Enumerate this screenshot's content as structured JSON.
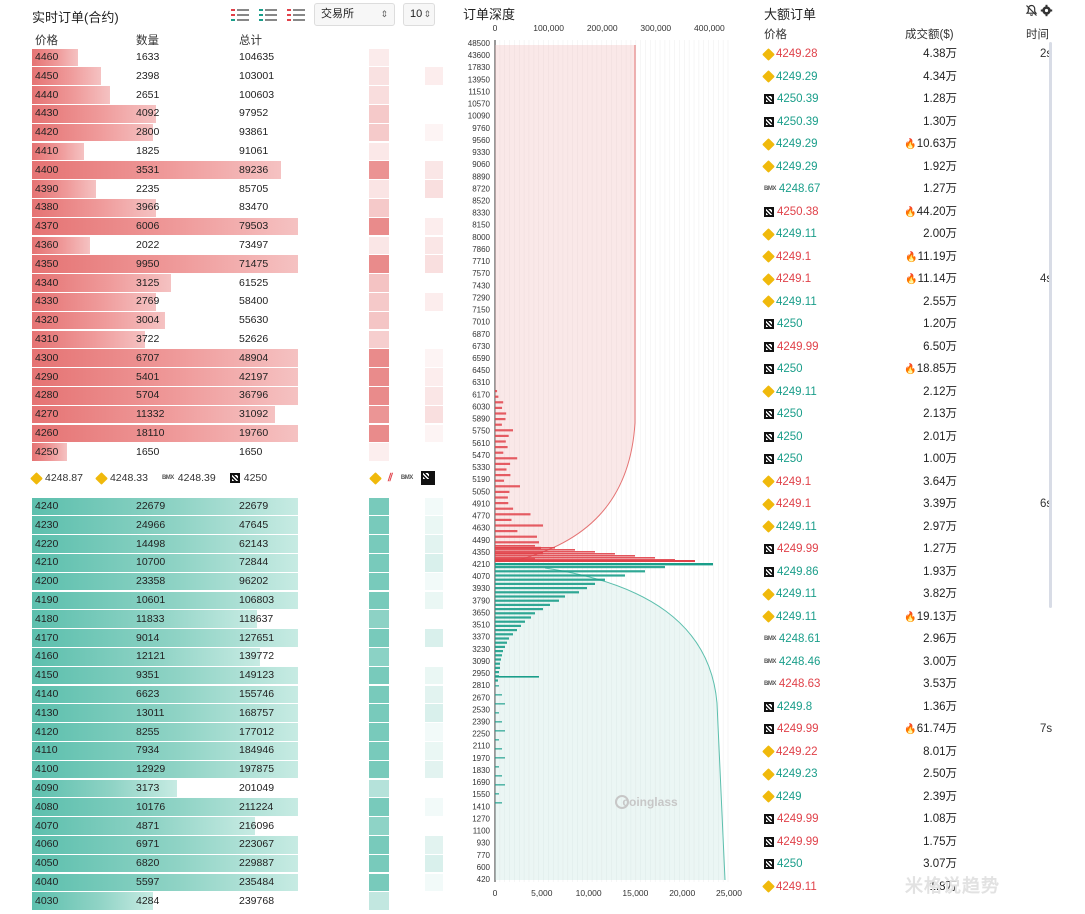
{
  "orderbook": {
    "title": "实时订单(合约)",
    "exchange_select": "交易所",
    "depth_select": "10",
    "headers": {
      "price": "价格",
      "qty": "数量",
      "total": "总计"
    },
    "asks": [
      {
        "price": "4460",
        "qty": "1633",
        "total": "104635",
        "fill": 0.16
      },
      {
        "price": "4450",
        "qty": "2398",
        "total": "103001",
        "fill": 0.24
      },
      {
        "price": "4440",
        "qty": "2651",
        "total": "100603",
        "fill": 0.27
      },
      {
        "price": "4430",
        "qty": "4092",
        "total": "97952",
        "fill": 0.43
      },
      {
        "price": "4420",
        "qty": "2800",
        "total": "93861",
        "fill": 0.42
      },
      {
        "price": "4410",
        "qty": "1825",
        "total": "91061",
        "fill": 0.18
      },
      {
        "price": "4400",
        "qty": "3531",
        "total": "89236",
        "fill": 0.86
      },
      {
        "price": "4390",
        "qty": "2235",
        "total": "85705",
        "fill": 0.22
      },
      {
        "price": "4380",
        "qty": "3966",
        "total": "83470",
        "fill": 0.43
      },
      {
        "price": "4370",
        "qty": "6006",
        "total": "79503",
        "fill": 0.92
      },
      {
        "price": "4360",
        "qty": "2022",
        "total": "73497",
        "fill": 0.2
      },
      {
        "price": "4350",
        "qty": "9950",
        "total": "71475",
        "fill": 0.92
      },
      {
        "price": "4340",
        "qty": "3125",
        "total": "61525",
        "fill": 0.48
      },
      {
        "price": "4330",
        "qty": "2769",
        "total": "58400",
        "fill": 0.43
      },
      {
        "price": "4320",
        "qty": "3004",
        "total": "55630",
        "fill": 0.46
      },
      {
        "price": "4310",
        "qty": "3722",
        "total": "52626",
        "fill": 0.39
      },
      {
        "price": "4300",
        "qty": "6707",
        "total": "48904",
        "fill": 0.92
      },
      {
        "price": "4290",
        "qty": "5401",
        "total": "42197",
        "fill": 0.92
      },
      {
        "price": "4280",
        "qty": "5704",
        "total": "36796",
        "fill": 0.92
      },
      {
        "price": "4270",
        "qty": "11332",
        "total": "31092",
        "fill": 0.84
      },
      {
        "price": "4260",
        "qty": "18110",
        "total": "19760",
        "fill": 0.92
      },
      {
        "price": "4250",
        "qty": "1650",
        "total": "1650",
        "fill": 0.12
      }
    ],
    "exchange_prices": [
      {
        "icon": "binance-icon",
        "price": "4248.87"
      },
      {
        "icon": "binance-icon",
        "price": "4248.33"
      },
      {
        "icon": "bitmex-icon",
        "price": "4248.39"
      },
      {
        "icon": "okx-icon",
        "price": "4250"
      }
    ],
    "bids": [
      {
        "price": "4240",
        "qty": "22679",
        "total": "22679",
        "fill": 0.92
      },
      {
        "price": "4230",
        "qty": "24966",
        "total": "47645",
        "fill": 0.92
      },
      {
        "price": "4220",
        "qty": "14498",
        "total": "62143",
        "fill": 0.92
      },
      {
        "price": "4210",
        "qty": "10700",
        "total": "72844",
        "fill": 0.92
      },
      {
        "price": "4200",
        "qty": "23358",
        "total": "96202",
        "fill": 0.92
      },
      {
        "price": "4190",
        "qty": "10601",
        "total": "106803",
        "fill": 0.92
      },
      {
        "price": "4180",
        "qty": "11833",
        "total": "118637",
        "fill": 0.78
      },
      {
        "price": "4170",
        "qty": "9014",
        "total": "127651",
        "fill": 0.92
      },
      {
        "price": "4160",
        "qty": "12121",
        "total": "139772",
        "fill": 0.79
      },
      {
        "price": "4150",
        "qty": "9351",
        "total": "149123",
        "fill": 0.92
      },
      {
        "price": "4140",
        "qty": "6623",
        "total": "155746",
        "fill": 0.92
      },
      {
        "price": "4130",
        "qty": "13011",
        "total": "168757",
        "fill": 0.92
      },
      {
        "price": "4120",
        "qty": "8255",
        "total": "177012",
        "fill": 0.92
      },
      {
        "price": "4110",
        "qty": "7934",
        "total": "184946",
        "fill": 0.92
      },
      {
        "price": "4100",
        "qty": "12929",
        "total": "197875",
        "fill": 0.92
      },
      {
        "price": "4090",
        "qty": "3173",
        "total": "201049",
        "fill": 0.5
      },
      {
        "price": "4080",
        "qty": "10176",
        "total": "211224",
        "fill": 0.92
      },
      {
        "price": "4070",
        "qty": "4871",
        "total": "216096",
        "fill": 0.77
      },
      {
        "price": "4060",
        "qty": "6971",
        "total": "223067",
        "fill": 0.92
      },
      {
        "price": "4050",
        "qty": "6820",
        "total": "229887",
        "fill": 0.92
      },
      {
        "price": "4040",
        "qty": "5597",
        "total": "235484",
        "fill": 0.92
      },
      {
        "price": "4030",
        "qty": "4284",
        "total": "239768",
        "fill": 0.42
      }
    ],
    "colors": {
      "ask": "#e57373",
      "bid": "#5cbfad"
    }
  },
  "depth": {
    "title": "订单深度",
    "watermark": "coinglass",
    "top_ticks": [
      "0",
      "100,000",
      "200,000",
      "300,000",
      "400,000"
    ],
    "bottom_ticks": [
      "0",
      "5,000",
      "10,000",
      "15,000",
      "20,000",
      "25,000"
    ],
    "price_labels": [
      "48500",
      "43600",
      "17830",
      "13950",
      "11510",
      "10570",
      "10090",
      "9760",
      "9560",
      "9330",
      "9060",
      "8890",
      "8720",
      "8520",
      "8330",
      "8150",
      "8000",
      "7860",
      "7710",
      "7570",
      "7430",
      "7290",
      "7150",
      "7010",
      "6870",
      "6730",
      "6590",
      "6450",
      "6310",
      "6170",
      "6030",
      "5890",
      "5750",
      "5610",
      "5470",
      "5330",
      "5190",
      "5050",
      "4910",
      "4770",
      "4630",
      "4490",
      "4350",
      "4210",
      "4070",
      "3930",
      "3790",
      "3650",
      "3510",
      "3370",
      "3230",
      "3090",
      "2950",
      "2810",
      "2670",
      "2530",
      "2390",
      "2250",
      "2110",
      "1970",
      "1830",
      "1690",
      "1550",
      "1410",
      "1270",
      "1100",
      "930",
      "770",
      "600",
      "420"
    ]
  },
  "large_orders": {
    "title": "大额订单",
    "headers": {
      "price": "价格",
      "amount": "成交额($)",
      "time": "时间"
    },
    "rows": [
      {
        "ex": "binance-icon",
        "price": "4249.28",
        "dir": "down",
        "amount": "4.38万",
        "fire": false,
        "time": "2s"
      },
      {
        "ex": "binance-icon",
        "price": "4249.29",
        "dir": "up",
        "amount": "4.34万",
        "fire": false,
        "time": ""
      },
      {
        "ex": "okx-icon",
        "price": "4250.39",
        "dir": "up",
        "amount": "1.28万",
        "fire": false,
        "time": ""
      },
      {
        "ex": "okx-icon",
        "price": "4250.39",
        "dir": "up",
        "amount": "1.30万",
        "fire": false,
        "time": ""
      },
      {
        "ex": "binance-icon",
        "price": "4249.29",
        "dir": "up",
        "amount": "10.63万",
        "fire": true,
        "time": ""
      },
      {
        "ex": "binance-icon",
        "price": "4249.29",
        "dir": "up",
        "amount": "1.92万",
        "fire": false,
        "time": ""
      },
      {
        "ex": "bitmex-icon",
        "price": "4248.67",
        "dir": "up",
        "amount": "1.27万",
        "fire": false,
        "time": ""
      },
      {
        "ex": "okx-icon",
        "price": "4250.38",
        "dir": "down",
        "amount": "44.20万",
        "fire": true,
        "time": ""
      },
      {
        "ex": "binance-icon",
        "price": "4249.11",
        "dir": "up",
        "amount": "2.00万",
        "fire": false,
        "time": ""
      },
      {
        "ex": "binance-icon",
        "price": "4249.1",
        "dir": "down",
        "amount": "11.19万",
        "fire": true,
        "time": ""
      },
      {
        "ex": "binance-icon",
        "price": "4249.1",
        "dir": "down",
        "amount": "11.14万",
        "fire": true,
        "time": "4s"
      },
      {
        "ex": "binance-icon",
        "price": "4249.11",
        "dir": "up",
        "amount": "2.55万",
        "fire": false,
        "time": ""
      },
      {
        "ex": "okx-icon",
        "price": "4250",
        "dir": "up",
        "amount": "1.20万",
        "fire": false,
        "time": ""
      },
      {
        "ex": "okx-icon",
        "price": "4249.99",
        "dir": "down",
        "amount": "6.50万",
        "fire": false,
        "time": ""
      },
      {
        "ex": "okx-icon",
        "price": "4250",
        "dir": "up",
        "amount": "18.85万",
        "fire": true,
        "time": ""
      },
      {
        "ex": "binance-icon",
        "price": "4249.11",
        "dir": "up",
        "amount": "2.12万",
        "fire": false,
        "time": ""
      },
      {
        "ex": "okx-icon",
        "price": "4250",
        "dir": "up",
        "amount": "2.13万",
        "fire": false,
        "time": ""
      },
      {
        "ex": "okx-icon",
        "price": "4250",
        "dir": "up",
        "amount": "2.01万",
        "fire": false,
        "time": ""
      },
      {
        "ex": "okx-icon",
        "price": "4250",
        "dir": "up",
        "amount": "1.00万",
        "fire": false,
        "time": ""
      },
      {
        "ex": "binance-icon",
        "price": "4249.1",
        "dir": "down",
        "amount": "3.64万",
        "fire": false,
        "time": ""
      },
      {
        "ex": "binance-icon",
        "price": "4249.1",
        "dir": "down",
        "amount": "3.39万",
        "fire": false,
        "time": "6s"
      },
      {
        "ex": "binance-icon",
        "price": "4249.11",
        "dir": "up",
        "amount": "2.97万",
        "fire": false,
        "time": ""
      },
      {
        "ex": "okx-icon",
        "price": "4249.99",
        "dir": "down",
        "amount": "1.27万",
        "fire": false,
        "time": ""
      },
      {
        "ex": "okx-icon",
        "price": "4249.86",
        "dir": "up",
        "amount": "1.93万",
        "fire": false,
        "time": ""
      },
      {
        "ex": "binance-icon",
        "price": "4249.11",
        "dir": "up",
        "amount": "3.82万",
        "fire": false,
        "time": ""
      },
      {
        "ex": "binance-icon",
        "price": "4249.11",
        "dir": "up",
        "amount": "19.13万",
        "fire": true,
        "time": ""
      },
      {
        "ex": "bitmex-icon",
        "price": "4248.61",
        "dir": "up",
        "amount": "2.96万",
        "fire": false,
        "time": ""
      },
      {
        "ex": "bitmex-icon",
        "price": "4248.46",
        "dir": "up",
        "amount": "3.00万",
        "fire": false,
        "time": ""
      },
      {
        "ex": "bitmex-icon",
        "price": "4248.63",
        "dir": "down",
        "amount": "3.53万",
        "fire": false,
        "time": ""
      },
      {
        "ex": "okx-icon",
        "price": "4249.8",
        "dir": "up",
        "amount": "1.36万",
        "fire": false,
        "time": ""
      },
      {
        "ex": "okx-icon",
        "price": "4249.99",
        "dir": "down",
        "amount": "61.74万",
        "fire": true,
        "time": "7s"
      },
      {
        "ex": "binance-icon",
        "price": "4249.22",
        "dir": "down",
        "amount": "8.01万",
        "fire": false,
        "time": ""
      },
      {
        "ex": "binance-icon",
        "price": "4249.23",
        "dir": "up",
        "amount": "2.50万",
        "fire": false,
        "time": ""
      },
      {
        "ex": "binance-icon",
        "price": "4249",
        "dir": "up",
        "amount": "2.39万",
        "fire": false,
        "time": ""
      },
      {
        "ex": "okx-icon",
        "price": "4249.99",
        "dir": "down",
        "amount": "1.08万",
        "fire": false,
        "time": ""
      },
      {
        "ex": "okx-icon",
        "price": "4249.99",
        "dir": "down",
        "amount": "1.75万",
        "fire": false,
        "time": ""
      },
      {
        "ex": "okx-icon",
        "price": "4250",
        "dir": "up",
        "amount": "3.07万",
        "fire": false,
        "time": ""
      },
      {
        "ex": "binance-icon",
        "price": "4249.11",
        "dir": "down",
        "amount": "1.8万",
        "fire": false,
        "time": ""
      }
    ],
    "watermark": "米格说趋势"
  }
}
